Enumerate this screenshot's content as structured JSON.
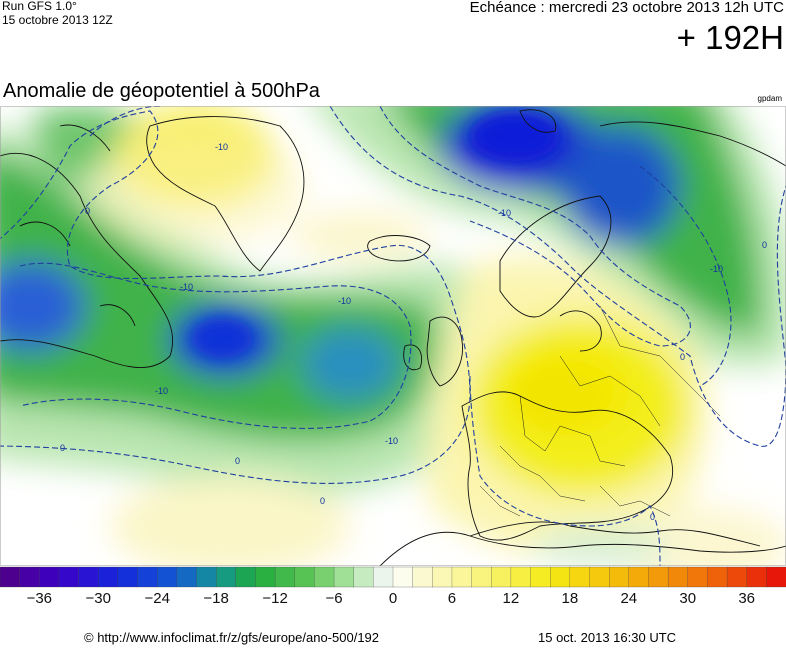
{
  "header": {
    "run_title": "Run GFS 1.0°",
    "run_date": "15 octobre 2013 12Z",
    "echeance": "Echéance : mercredi 23 octobre 2013 12h UTC",
    "lead_time": "+ 192H",
    "map_title": "Anomalie de géopotentiel à 500hPa",
    "unit": "gpdam"
  },
  "map": {
    "contour_labels": [
      {
        "id": "c1",
        "text": "-10"
      },
      {
        "id": "c2",
        "text": "0"
      },
      {
        "id": "c3",
        "text": "-10"
      },
      {
        "id": "c4",
        "text": "-10"
      },
      {
        "id": "c5",
        "text": "-10"
      },
      {
        "id": "c6",
        "text": "-10"
      },
      {
        "id": "c7",
        "text": "0"
      },
      {
        "id": "c8",
        "text": "-10"
      },
      {
        "id": "c9",
        "text": "0"
      },
      {
        "id": "c10",
        "text": "-10"
      },
      {
        "id": "c11",
        "text": "0"
      },
      {
        "id": "c12",
        "text": "0"
      },
      {
        "id": "c13",
        "text": "0"
      },
      {
        "id": "c14",
        "text": "0"
      }
    ],
    "anomalies": [
      {
        "name": "trough-north-atlantic-center",
        "value": -30
      },
      {
        "name": "trough-west-atlantic",
        "value": -24
      },
      {
        "name": "trough-north-atlantic-east",
        "value": -22
      },
      {
        "name": "trough-scandinavia",
        "value": -30
      },
      {
        "name": "trough-north-canada",
        "value": -12
      },
      {
        "name": "ridge-central-europe",
        "value": 18
      },
      {
        "name": "ridge-greenland",
        "value": 12
      }
    ]
  },
  "colorbar": {
    "min": -40,
    "max": 40,
    "step": 2,
    "tick_labels": [
      "−36",
      "−30",
      "−24",
      "−18",
      "−12",
      "−6",
      "0",
      "6",
      "12",
      "18",
      "24",
      "30",
      "36"
    ],
    "tick_values": [
      -36,
      -30,
      -24,
      -18,
      -12,
      -6,
      0,
      6,
      12,
      18,
      24,
      30,
      36
    ]
  },
  "footer": {
    "url": "© http://www.infoclimat.fr/z/gfs/europe/ano-500/192",
    "timestamp": "15 oct. 2013 16:30 UTC"
  }
}
